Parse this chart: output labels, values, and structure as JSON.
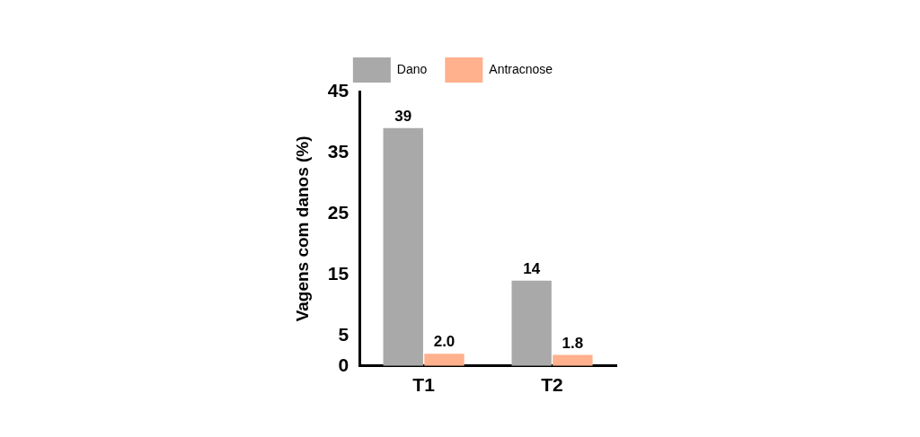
{
  "chart_data": {
    "type": "bar",
    "ylabel": "Vagens com danos (%)",
    "categories": [
      "T1",
      "T2"
    ],
    "series": [
      {
        "name": "Dano",
        "color": "#a9a9a9",
        "values": [
          39,
          14
        ],
        "value_labels": [
          "39",
          "14"
        ]
      },
      {
        "name": "Antracnose",
        "color": "#ffb08c",
        "values": [
          2.0,
          1.8
        ],
        "value_labels": [
          "2.0",
          "1.8"
        ]
      }
    ],
    "ylim": [
      0,
      45
    ],
    "yticks": [
      0,
      5,
      15,
      25,
      35,
      45
    ],
    "grid": false,
    "legend": "top"
  }
}
